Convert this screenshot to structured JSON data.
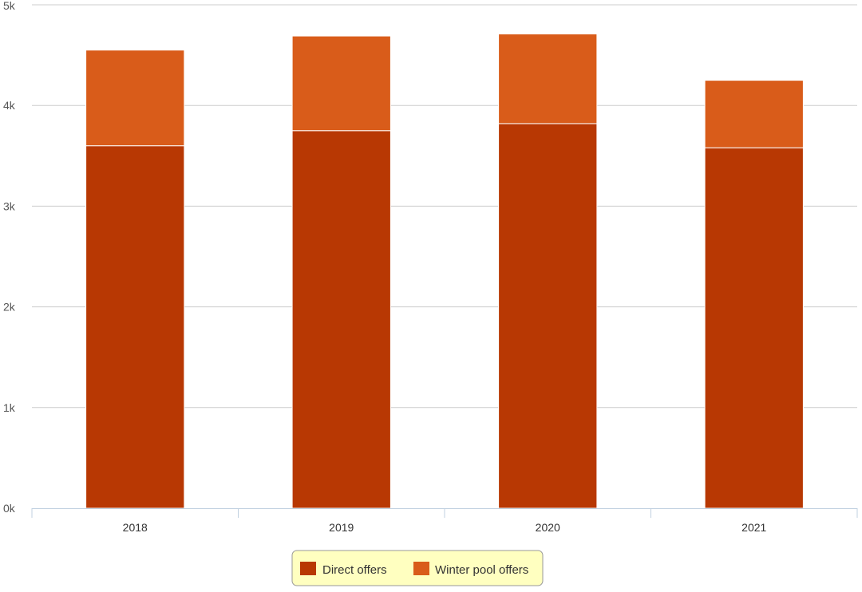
{
  "chart_data": {
    "type": "bar",
    "stacked": true,
    "categories": [
      "2018",
      "2019",
      "2020",
      "2021"
    ],
    "series": [
      {
        "name": "Direct offers",
        "values": [
          3600,
          3750,
          3820,
          3580
        ],
        "color": "#b83803"
      },
      {
        "name": "Winter pool offers",
        "values": [
          950,
          940,
          890,
          670
        ],
        "color": "#d95c1a"
      }
    ],
    "ylim": [
      0,
      5000
    ],
    "yticks": [
      0,
      1000,
      2000,
      3000,
      4000,
      5000
    ],
    "ytick_labels": [
      "0k",
      "1k",
      "2k",
      "3k",
      "4k",
      "5k"
    ],
    "grid": true,
    "legend": "bottom-center",
    "legend_bg": "#ffffc0",
    "title": "",
    "xlabel": "",
    "ylabel": ""
  }
}
